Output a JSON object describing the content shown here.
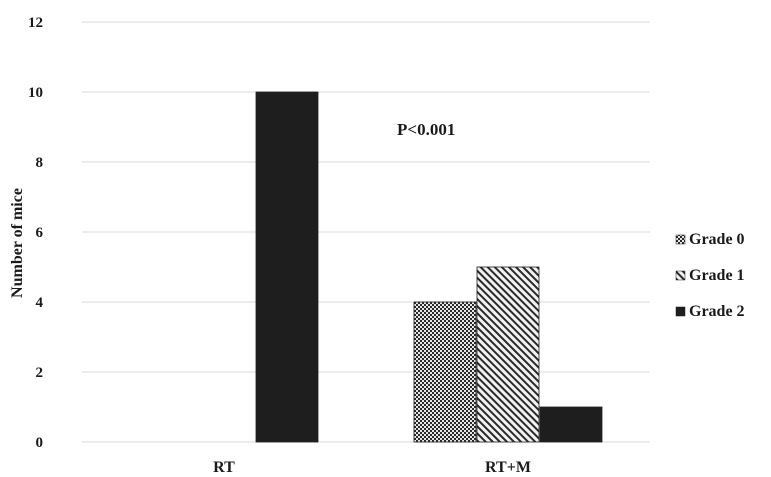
{
  "chart_data": {
    "type": "bar",
    "categories": [
      "RT",
      "RT+M"
    ],
    "series": [
      {
        "name": "Grade 0",
        "values": [
          0,
          4
        ],
        "pattern": "checker",
        "color": "#2a2a2a"
      },
      {
        "name": "Grade 1",
        "values": [
          0,
          5
        ],
        "pattern": "diagonal",
        "color": "#2a2a2a"
      },
      {
        "name": "Grade 2",
        "values": [
          10,
          1
        ],
        "pattern": "solid",
        "color": "#1e1e1e"
      }
    ],
    "title": "",
    "xlabel": "",
    "ylabel": "Number of mice",
    "ylim": [
      0,
      12
    ],
    "yticks": [
      0,
      2,
      4,
      6,
      8,
      10,
      12
    ],
    "grid": true,
    "legend_position": "right",
    "annotation": "P<0.001"
  }
}
